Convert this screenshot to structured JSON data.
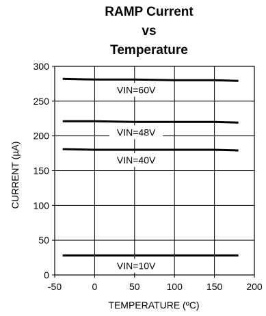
{
  "chart_data": {
    "type": "line",
    "title_lines": [
      "RAMP Current",
      "vs",
      "Temperature"
    ],
    "xlabel": "TEMPERATURE (ºC)",
    "ylabel": "CURRENT (µA)",
    "xlim": [
      -50,
      200
    ],
    "ylim": [
      0,
      300
    ],
    "xticks": [
      "-50",
      "0",
      "50",
      "100",
      "150",
      "200"
    ],
    "yticks": [
      "0",
      "50",
      "100",
      "150",
      "200",
      "250",
      "300"
    ],
    "grid": true,
    "series": [
      {
        "name": "VIN=60V",
        "x": [
          -40,
          0,
          50,
          100,
          150,
          180
        ],
        "y": [
          282,
          281,
          281,
          280,
          280,
          279
        ]
      },
      {
        "name": "VIN=48V",
        "x": [
          -40,
          0,
          50,
          100,
          150,
          180
        ],
        "y": [
          221,
          221,
          220,
          220,
          220,
          219
        ]
      },
      {
        "name": "VIN=40V",
        "x": [
          -40,
          0,
          50,
          100,
          150,
          180
        ],
        "y": [
          181,
          180,
          180,
          180,
          180,
          179
        ]
      },
      {
        "name": "VIN=10V",
        "x": [
          -40,
          0,
          50,
          100,
          150,
          180
        ],
        "y": [
          28,
          28,
          28,
          28,
          28,
          28
        ]
      }
    ]
  }
}
